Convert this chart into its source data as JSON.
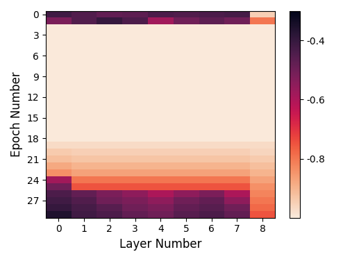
{
  "n_epochs": 30,
  "n_layers": 9,
  "xlabel": "Layer Number",
  "ylabel": "Epoch Number",
  "vmin": -1.0,
  "vmax": -0.3,
  "colorbar_ticks": [
    -0.4,
    -0.6,
    -0.8
  ],
  "colorbar_ticklabels": [
    "-0.4",
    "-0.6",
    "-0.8"
  ],
  "xtick_labels": [
    "0",
    "1",
    "2",
    "3",
    "4",
    "5",
    "6",
    "7",
    "8"
  ],
  "ytick_positions": [
    0,
    3,
    6,
    9,
    12,
    15,
    18,
    21,
    24,
    27
  ],
  "ytick_labels": [
    "0",
    "3",
    "6",
    "9",
    "12",
    "15",
    "18",
    "21",
    "24",
    "27"
  ],
  "figsize": [
    4.94,
    3.76
  ],
  "dpi": 100,
  "epoch0_row": [
    -0.42,
    -0.45,
    -0.48,
    -0.47,
    -0.44,
    -0.45,
    -0.44,
    -0.43,
    -0.95
  ],
  "epoch1_row": [
    -0.52,
    -0.45,
    -0.4,
    -0.44,
    -0.58,
    -0.5,
    -0.47,
    -0.5,
    -0.8
  ],
  "dark_val": -0.995,
  "epoch19_row": [
    -0.97,
    -0.97,
    -0.97,
    -0.97,
    -0.97,
    -0.97,
    -0.97,
    -0.97,
    -0.97
  ],
  "epoch20_row": [
    -0.94,
    -0.95,
    -0.95,
    -0.95,
    -0.95,
    -0.95,
    -0.95,
    -0.95,
    -0.96
  ],
  "epoch21_row": [
    -0.92,
    -0.93,
    -0.93,
    -0.93,
    -0.93,
    -0.93,
    -0.93,
    -0.93,
    -0.94
  ],
  "epoch22_row": [
    -0.88,
    -0.9,
    -0.9,
    -0.9,
    -0.9,
    -0.9,
    -0.9,
    -0.9,
    -0.92
  ],
  "epoch23_row": [
    -0.84,
    -0.87,
    -0.87,
    -0.87,
    -0.87,
    -0.87,
    -0.87,
    -0.87,
    -0.9
  ],
  "epoch24_row": [
    -0.58,
    -0.8,
    -0.8,
    -0.8,
    -0.8,
    -0.8,
    -0.8,
    -0.8,
    -0.87
  ],
  "epoch25_row": [
    -0.5,
    -0.75,
    -0.75,
    -0.75,
    -0.75,
    -0.75,
    -0.75,
    -0.75,
    -0.84
  ],
  "epoch26_row": [
    -0.44,
    -0.48,
    -0.52,
    -0.55,
    -0.6,
    -0.55,
    -0.52,
    -0.6,
    -0.82
  ],
  "epoch27_row": [
    -0.42,
    -0.45,
    -0.5,
    -0.52,
    -0.55,
    -0.5,
    -0.48,
    -0.55,
    -0.8
  ],
  "epoch28_row": [
    -0.4,
    -0.43,
    -0.46,
    -0.5,
    -0.52,
    -0.48,
    -0.46,
    -0.5,
    -0.78
  ],
  "epoch29_row": [
    -0.36,
    -0.42,
    -0.44,
    -0.48,
    -0.5,
    -0.46,
    -0.44,
    -0.48,
    -0.75
  ]
}
